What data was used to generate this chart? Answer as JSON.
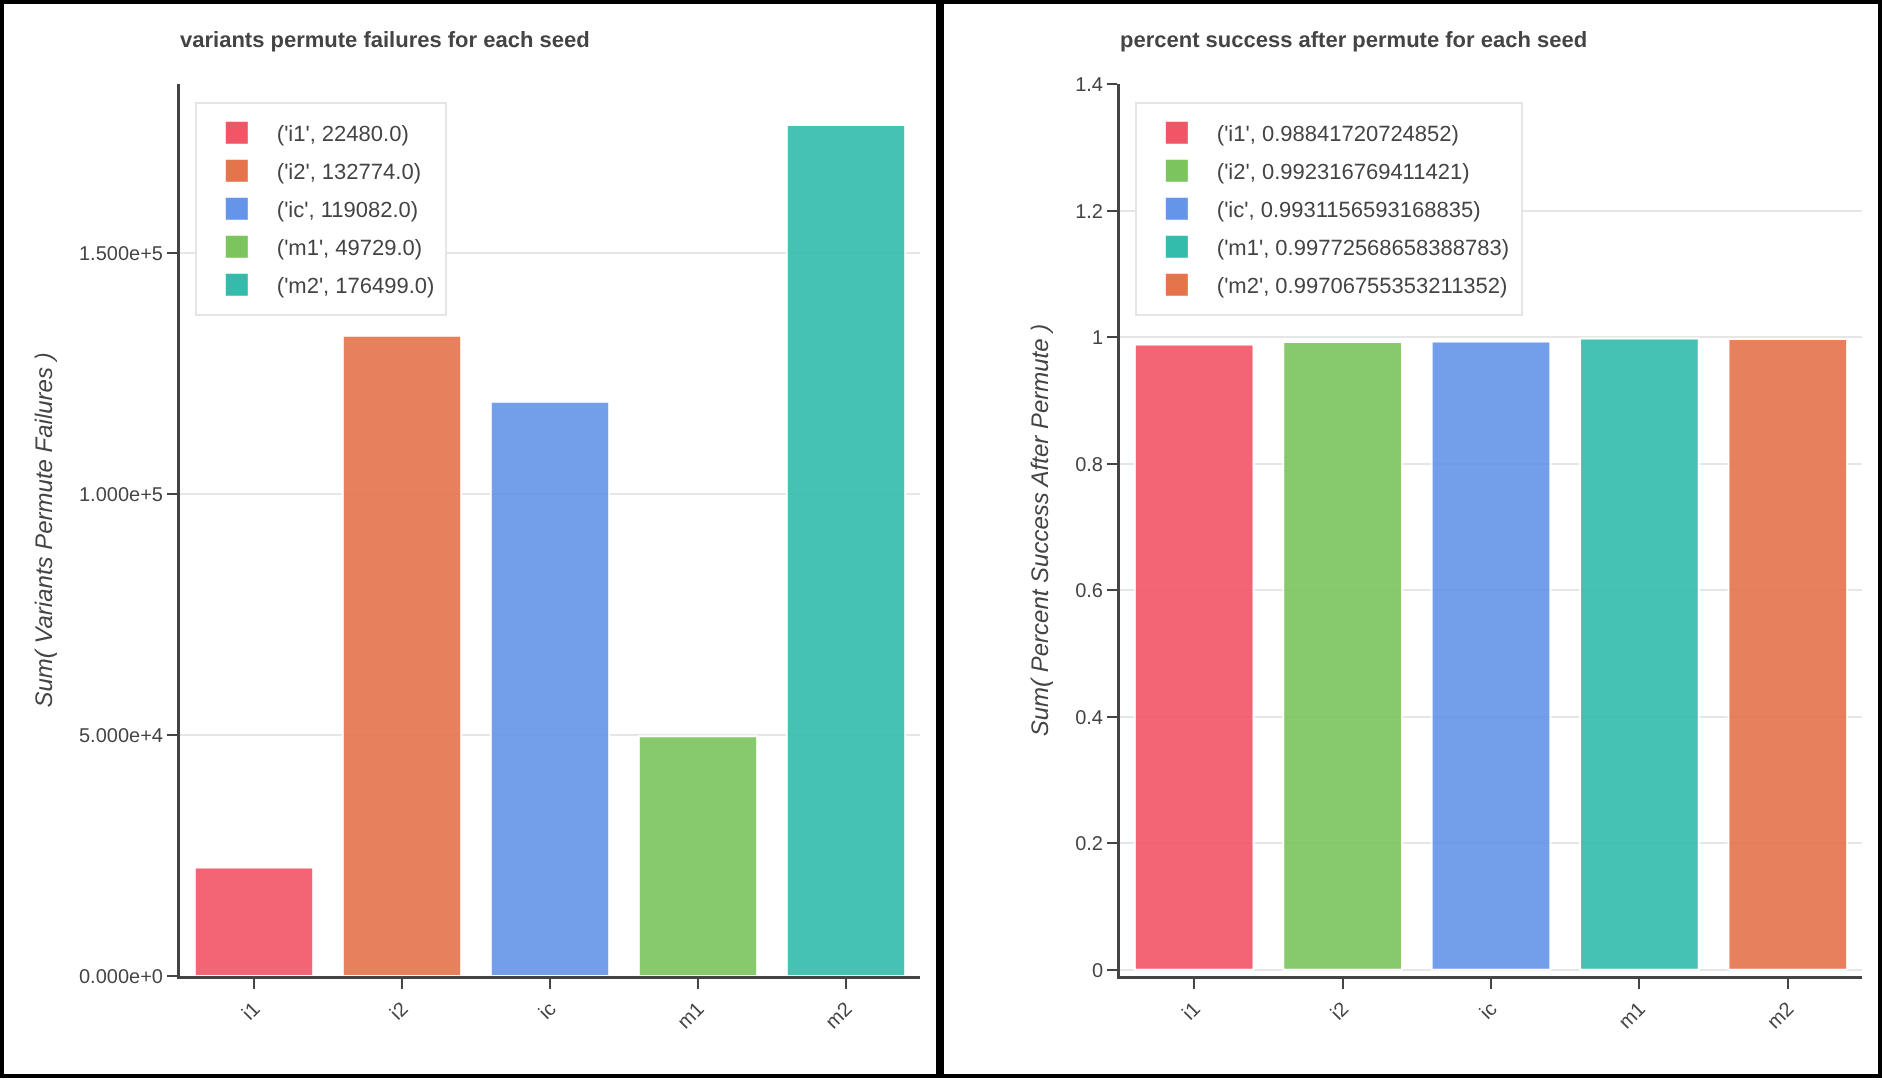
{
  "chart_data": [
    {
      "type": "bar",
      "title": "variants permute failures for each seed",
      "ylabel": "Sum( Variants Permute Failures )",
      "categories": [
        "i1",
        "i2",
        "ic",
        "m1",
        "m2"
      ],
      "series": [
        {
          "name": "('i1', 22480.0)",
          "color": "#f25566",
          "values": [
            22480,
            null,
            null,
            null,
            null
          ]
        },
        {
          "name": "('i2', 132774.0)",
          "color": "#e5734b",
          "values": [
            null,
            132774,
            null,
            null,
            null
          ]
        },
        {
          "name": "('ic', 119082.0)",
          "color": "#6495e8",
          "values": [
            null,
            null,
            119082,
            null,
            null
          ]
        },
        {
          "name": "('m1', 49729.0)",
          "color": "#7bc45e",
          "values": [
            null,
            null,
            null,
            49729,
            null
          ]
        },
        {
          "name": "('m2', 176499.0)",
          "color": "#33bcab",
          "values": [
            null,
            null,
            null,
            null,
            176499
          ]
        }
      ],
      "ylim": [
        0,
        185000
      ],
      "yticks": [
        {
          "value": 0,
          "label": "0.000e+0"
        },
        {
          "value": 50000,
          "label": "5.000e+4"
        },
        {
          "value": 100000,
          "label": "1.000e+5"
        },
        {
          "value": 150000,
          "label": "1.500e+5"
        }
      ],
      "grid": "y",
      "legend": "top left"
    },
    {
      "type": "bar",
      "title": "percent success after permute for each seed",
      "ylabel": "Sum( Percent Success After Permute )",
      "categories": [
        "i1",
        "i2",
        "ic",
        "m1",
        "m2"
      ],
      "series": [
        {
          "name": "('i1', 0.98841720724852)",
          "color": "#f25566",
          "values": [
            0.98841720724852,
            null,
            null,
            null,
            null
          ]
        },
        {
          "name": "('i2', 0.992316769411421)",
          "color": "#7bc45e",
          "values": [
            null,
            0.992316769411421,
            null,
            null,
            null
          ]
        },
        {
          "name": "('ic', 0.9931156593168835)",
          "color": "#6495e8",
          "values": [
            null,
            null,
            0.9931156593168835,
            null,
            null
          ]
        },
        {
          "name": "('m1', 0.99772568658388783)",
          "color": "#33bcab",
          "values": [
            null,
            null,
            null,
            0.9977256865838878,
            null
          ]
        },
        {
          "name": "('m2', 0.99706755353211352)",
          "color": "#e5734b",
          "values": [
            null,
            null,
            null,
            null,
            0.9970675535321135
          ]
        }
      ],
      "ylim": [
        -0.01,
        1.4
      ],
      "yticks": [
        0,
        0.2,
        0.4,
        0.6,
        0.8,
        1,
        1.2,
        1.4
      ],
      "grid": "y",
      "legend": "top left"
    }
  ]
}
